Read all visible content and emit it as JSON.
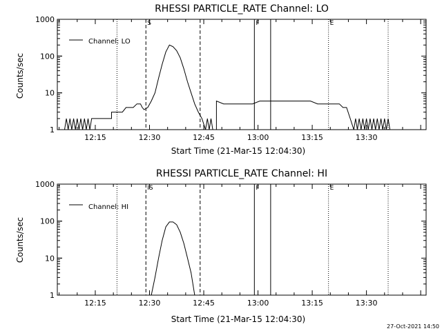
{
  "footer": {
    "timestamp": "27-Oct-2021 14:50"
  },
  "chart_data": [
    {
      "type": "line",
      "title": "RHESSI PARTICLE_RATE Channel: LO",
      "xlabel": "Start Time (21-Mar-15 12:04:30)",
      "ylabel": "Counts/sec",
      "yscale": "log",
      "ylim": [
        1,
        1000
      ],
      "xlim": [
        "12:04:30",
        "13:46:30"
      ],
      "x_ticks": [
        "12:15",
        "12:30",
        "12:45",
        "13:00",
        "13:15",
        "13:30"
      ],
      "y_ticks": [
        "1",
        "10",
        "100",
        "1000"
      ],
      "legend": {
        "position": "top-left",
        "entries": [
          "Channel: LO"
        ]
      },
      "series": [
        {
          "name": "Channel: LO",
          "points": [
            [
              "12:06:30",
              1
            ],
            [
              "12:07:00",
              2
            ],
            [
              "12:07:30",
              1
            ],
            [
              "12:08:00",
              2
            ],
            [
              "12:08:30",
              1
            ],
            [
              "12:09:00",
              2
            ],
            [
              "12:09:30",
              1
            ],
            [
              "12:10:00",
              2
            ],
            [
              "12:10:30",
              1
            ],
            [
              "12:11:00",
              2
            ],
            [
              "12:11:30",
              1
            ],
            [
              "12:12:00",
              2
            ],
            [
              "12:12:30",
              1
            ],
            [
              "12:13:00",
              2
            ],
            [
              "12:13:30",
              1
            ],
            [
              "12:14:00",
              2
            ],
            [
              "12:14:30",
              2
            ],
            [
              "12:16:30",
              2
            ],
            [
              "12:18:30",
              2
            ],
            [
              "12:19:30",
              2
            ],
            [
              "12:19:30",
              3
            ],
            [
              "12:20:30",
              3
            ],
            [
              "12:21:30",
              3
            ],
            [
              "12:22:30",
              3
            ],
            [
              "12:23:30",
              4
            ],
            [
              "12:24:30",
              4
            ],
            [
              "12:25:30",
              4
            ],
            [
              "12:26:30",
              5
            ],
            [
              "12:27:30",
              5
            ],
            [
              "12:28:00",
              4
            ],
            [
              "12:28:30",
              3.5
            ],
            [
              "12:29:30",
              4
            ],
            [
              "12:30:30",
              6
            ],
            [
              "12:31:30",
              10
            ],
            [
              "12:32:30",
              25
            ],
            [
              "12:33:30",
              60
            ],
            [
              "12:34:30",
              130
            ],
            [
              "12:35:30",
              200
            ],
            [
              "12:36:30",
              180
            ],
            [
              "12:37:30",
              140
            ],
            [
              "12:38:30",
              90
            ],
            [
              "12:39:30",
              45
            ],
            [
              "12:40:30",
              20
            ],
            [
              "12:41:30",
              10
            ],
            [
              "12:42:30",
              5
            ],
            [
              "12:43:30",
              3
            ],
            [
              "12:44:30",
              2
            ],
            [
              "12:45:30",
              1
            ],
            [
              "12:46:00",
              2
            ],
            [
              "12:46:30",
              1
            ],
            [
              "12:47:00",
              2
            ],
            [
              "12:47:30",
              1
            ],
            [
              "12:48:30",
              1
            ],
            [
              "12:48:30",
              6
            ],
            [
              "12:50:30",
              5
            ],
            [
              "12:52:30",
              5
            ],
            [
              "12:54:30",
              5
            ],
            [
              "12:56:30",
              5
            ],
            [
              "12:58:30",
              5
            ],
            [
              "13:00:30",
              6
            ],
            [
              "13:02:30",
              6
            ],
            [
              "13:04:30",
              6
            ],
            [
              "13:06:30",
              6
            ],
            [
              "13:08:30",
              6
            ],
            [
              "13:10:30",
              6
            ],
            [
              "13:12:30",
              6
            ],
            [
              "13:14:30",
              6
            ],
            [
              "13:16:30",
              5
            ],
            [
              "13:18:30",
              5
            ],
            [
              "13:20:30",
              5
            ],
            [
              "13:22:30",
              5
            ],
            [
              "13:23:30",
              4
            ],
            [
              "13:24:30",
              4
            ],
            [
              "13:25:30",
              2
            ],
            [
              "13:26:30",
              1
            ],
            [
              "13:27:00",
              2
            ],
            [
              "13:27:30",
              1
            ],
            [
              "13:28:00",
              2
            ],
            [
              "13:28:30",
              1
            ],
            [
              "13:29:00",
              2
            ],
            [
              "13:29:30",
              1
            ],
            [
              "13:30:00",
              2
            ],
            [
              "13:30:30",
              1
            ],
            [
              "13:31:00",
              2
            ],
            [
              "13:31:30",
              1
            ],
            [
              "13:32:00",
              2
            ],
            [
              "13:32:30",
              1
            ],
            [
              "13:33:00",
              2
            ],
            [
              "13:33:30",
              1
            ],
            [
              "13:34:00",
              2
            ],
            [
              "13:34:30",
              1
            ],
            [
              "13:35:00",
              2
            ],
            [
              "13:35:30",
              1
            ],
            [
              "13:36:00",
              2
            ],
            [
              "13:36:30",
              1
            ]
          ]
        }
      ],
      "markers": [
        {
          "time": "12:21:00",
          "style": "dotted",
          "label": ""
        },
        {
          "time": "12:29:00",
          "style": "dashed",
          "label": "S"
        },
        {
          "time": "12:44:00",
          "style": "dashed",
          "label": ""
        },
        {
          "time": "12:59:00",
          "style": "solid",
          "label": "F"
        },
        {
          "time": "13:03:30",
          "style": "solid",
          "label": ""
        },
        {
          "time": "13:19:30",
          "style": "dotted",
          "label": "E"
        },
        {
          "time": "13:36:00",
          "style": "dotted",
          "label": ""
        }
      ]
    },
    {
      "type": "line",
      "title": "RHESSI PARTICLE_RATE Channel: HI",
      "xlabel": "Start Time (21-Mar-15 12:04:30)",
      "ylabel": "Counts/sec",
      "yscale": "log",
      "ylim": [
        1,
        1000
      ],
      "xlim": [
        "12:04:30",
        "13:46:30"
      ],
      "x_ticks": [
        "12:15",
        "12:30",
        "12:45",
        "13:00",
        "13:15",
        "13:30"
      ],
      "y_ticks": [
        "1",
        "10",
        "100",
        "1000"
      ],
      "legend": {
        "position": "top-left",
        "entries": [
          "Channel: HI"
        ]
      },
      "series": [
        {
          "name": "Channel: HI",
          "points": [
            [
              "12:30:30",
              1
            ],
            [
              "12:31:30",
              3
            ],
            [
              "12:32:30",
              10
            ],
            [
              "12:33:30",
              30
            ],
            [
              "12:34:30",
              70
            ],
            [
              "12:35:30",
              95
            ],
            [
              "12:36:30",
              95
            ],
            [
              "12:37:30",
              80
            ],
            [
              "12:38:30",
              50
            ],
            [
              "12:39:30",
              25
            ],
            [
              "12:40:30",
              10
            ],
            [
              "12:41:30",
              4
            ],
            [
              "12:42:00",
              2
            ],
            [
              "12:42:30",
              1
            ]
          ]
        }
      ],
      "markers": [
        {
          "time": "12:21:00",
          "style": "dotted",
          "label": ""
        },
        {
          "time": "12:29:00",
          "style": "dashed",
          "label": "IS"
        },
        {
          "time": "12:44:00",
          "style": "dashed",
          "label": ""
        },
        {
          "time": "12:59:00",
          "style": "solid",
          "label": "F"
        },
        {
          "time": "13:03:30",
          "style": "solid",
          "label": ""
        },
        {
          "time": "13:19:30",
          "style": "dotted",
          "label": "E"
        },
        {
          "time": "13:36:00",
          "style": "dotted",
          "label": ""
        }
      ]
    }
  ]
}
